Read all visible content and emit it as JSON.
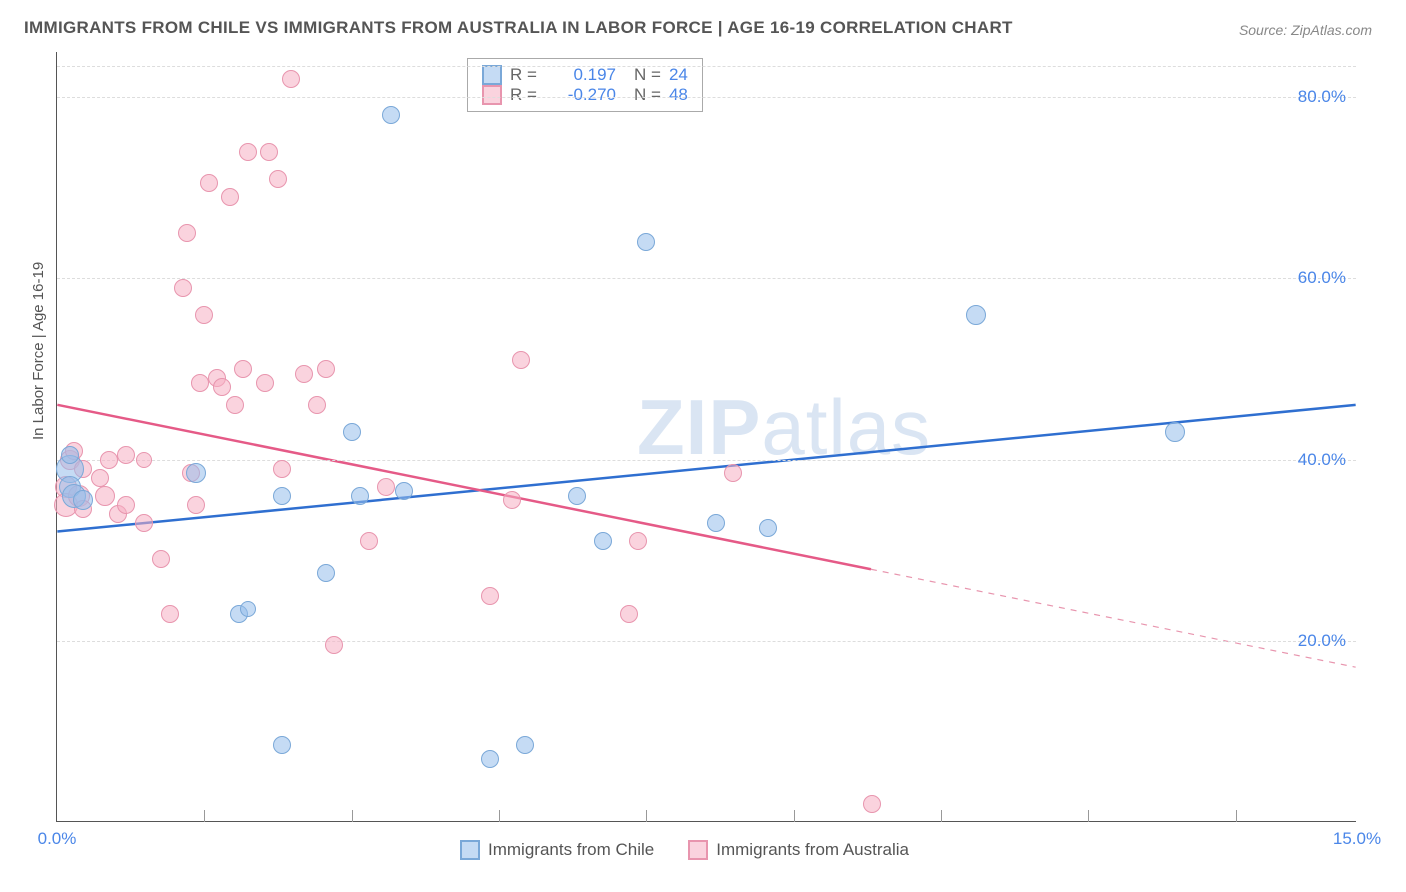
{
  "title": "IMMIGRANTS FROM CHILE VS IMMIGRANTS FROM AUSTRALIA IN LABOR FORCE | AGE 16-19 CORRELATION CHART",
  "source": "Source: ZipAtlas.com",
  "ylabel": "In Labor Force | Age 16-19",
  "watermark_bold": "ZIP",
  "watermark_rest": "atlas",
  "chart": {
    "type": "scatter",
    "xlim": [
      0,
      15
    ],
    "ylim": [
      0,
      85
    ],
    "x_ticks_minor": [
      1.7,
      3.4,
      5.1,
      6.8,
      8.5,
      10.2,
      11.9,
      13.6
    ],
    "x_tick_labels": [
      {
        "v": 0,
        "label": "0.0%"
      },
      {
        "v": 15,
        "label": "15.0%"
      }
    ],
    "y_gridlines": [
      20,
      40,
      60,
      80,
      83.5
    ],
    "y_tick_labels": [
      {
        "v": 20,
        "label": "20.0%"
      },
      {
        "v": 40,
        "label": "40.0%"
      },
      {
        "v": 60,
        "label": "60.0%"
      },
      {
        "v": 80,
        "label": "80.0%"
      }
    ],
    "background_color": "#ffffff",
    "grid_color": "#dddddd",
    "axis_color": "#555555",
    "series": {
      "chile": {
        "label": "Immigrants from Chile",
        "fill": "rgba(150,190,235,0.55)",
        "stroke": "#7aa8d8",
        "line_color": "#2f6fd0",
        "marker_size": 18,
        "R": "0.197",
        "N": "24",
        "trend": {
          "x1": 0,
          "y1": 32,
          "x2": 15,
          "y2": 46,
          "solid_until_x": 15
        },
        "points": [
          {
            "x": 0.15,
            "y": 39,
            "r": 14
          },
          {
            "x": 0.15,
            "y": 37,
            "r": 11
          },
          {
            "x": 0.2,
            "y": 36,
            "r": 12
          },
          {
            "x": 0.3,
            "y": 35.5,
            "r": 10
          },
          {
            "x": 0.15,
            "y": 40.5,
            "r": 9
          },
          {
            "x": 1.6,
            "y": 38.5,
            "r": 10
          },
          {
            "x": 2.1,
            "y": 23,
            "r": 9
          },
          {
            "x": 2.2,
            "y": 23.5,
            "r": 8
          },
          {
            "x": 2.6,
            "y": 8.5,
            "r": 9
          },
          {
            "x": 2.6,
            "y": 36,
            "r": 9
          },
          {
            "x": 3.1,
            "y": 27.5,
            "r": 9
          },
          {
            "x": 3.4,
            "y": 43,
            "r": 9
          },
          {
            "x": 3.5,
            "y": 36,
            "r": 9
          },
          {
            "x": 3.85,
            "y": 78,
            "r": 9
          },
          {
            "x": 4.0,
            "y": 36.5,
            "r": 9
          },
          {
            "x": 5.0,
            "y": 7,
            "r": 9
          },
          {
            "x": 5.4,
            "y": 8.5,
            "r": 9
          },
          {
            "x": 6.0,
            "y": 36,
            "r": 9
          },
          {
            "x": 6.3,
            "y": 31,
            "r": 9
          },
          {
            "x": 6.8,
            "y": 64,
            "r": 9
          },
          {
            "x": 7.6,
            "y": 33,
            "r": 9
          },
          {
            "x": 8.2,
            "y": 32.5,
            "r": 9
          },
          {
            "x": 10.6,
            "y": 56,
            "r": 10
          },
          {
            "x": 12.9,
            "y": 43,
            "r": 10
          }
        ]
      },
      "australia": {
        "label": "Immigrants from Australia",
        "fill": "rgba(245,175,195,0.55)",
        "stroke": "#e895ae",
        "line_color": "#e55a87",
        "marker_size": 18,
        "R": "-0.270",
        "N": "48",
        "trend": {
          "x1": 0,
          "y1": 46,
          "x2": 15,
          "y2": 17,
          "solid_until_x": 9.4
        },
        "points": [
          {
            "x": 0.1,
            "y": 37,
            "r": 11
          },
          {
            "x": 0.1,
            "y": 35,
            "r": 12
          },
          {
            "x": 0.15,
            "y": 40,
            "r": 10
          },
          {
            "x": 0.2,
            "y": 41,
            "r": 9
          },
          {
            "x": 0.25,
            "y": 36,
            "r": 11
          },
          {
            "x": 0.3,
            "y": 34.5,
            "r": 9
          },
          {
            "x": 0.3,
            "y": 39,
            "r": 9
          },
          {
            "x": 0.5,
            "y": 38,
            "r": 9
          },
          {
            "x": 0.55,
            "y": 36,
            "r": 10
          },
          {
            "x": 0.6,
            "y": 40,
            "r": 9
          },
          {
            "x": 0.7,
            "y": 34,
            "r": 9
          },
          {
            "x": 0.8,
            "y": 40.5,
            "r": 9
          },
          {
            "x": 0.8,
            "y": 35,
            "r": 9
          },
          {
            "x": 1.0,
            "y": 33,
            "r": 9
          },
          {
            "x": 1.0,
            "y": 40,
            "r": 8
          },
          {
            "x": 1.2,
            "y": 29,
            "r": 9
          },
          {
            "x": 1.3,
            "y": 23,
            "r": 9
          },
          {
            "x": 1.45,
            "y": 59,
            "r": 9
          },
          {
            "x": 1.5,
            "y": 65,
            "r": 9
          },
          {
            "x": 1.55,
            "y": 38.5,
            "r": 9
          },
          {
            "x": 1.6,
            "y": 35,
            "r": 9
          },
          {
            "x": 1.65,
            "y": 48.5,
            "r": 9
          },
          {
            "x": 1.7,
            "y": 56,
            "r": 9
          },
          {
            "x": 1.75,
            "y": 70.5,
            "r": 9
          },
          {
            "x": 1.85,
            "y": 49,
            "r": 9
          },
          {
            "x": 1.9,
            "y": 48,
            "r": 9
          },
          {
            "x": 2.0,
            "y": 69,
            "r": 9
          },
          {
            "x": 2.05,
            "y": 46,
            "r": 9
          },
          {
            "x": 2.15,
            "y": 50,
            "r": 9
          },
          {
            "x": 2.2,
            "y": 74,
            "r": 9
          },
          {
            "x": 2.45,
            "y": 74,
            "r": 9
          },
          {
            "x": 2.4,
            "y": 48.5,
            "r": 9
          },
          {
            "x": 2.55,
            "y": 71,
            "r": 9
          },
          {
            "x": 2.6,
            "y": 39,
            "r": 9
          },
          {
            "x": 2.7,
            "y": 82,
            "r": 9
          },
          {
            "x": 2.85,
            "y": 49.5,
            "r": 9
          },
          {
            "x": 3.0,
            "y": 46,
            "r": 9
          },
          {
            "x": 3.1,
            "y": 50,
            "r": 9
          },
          {
            "x": 3.2,
            "y": 19.5,
            "r": 9
          },
          {
            "x": 3.6,
            "y": 31,
            "r": 9
          },
          {
            "x": 3.8,
            "y": 37,
            "r": 9
          },
          {
            "x": 5.0,
            "y": 25,
            "r": 9
          },
          {
            "x": 5.25,
            "y": 35.5,
            "r": 9
          },
          {
            "x": 5.35,
            "y": 51,
            "r": 9
          },
          {
            "x": 6.6,
            "y": 23,
            "r": 9
          },
          {
            "x": 6.7,
            "y": 31,
            "r": 9
          },
          {
            "x": 7.8,
            "y": 38.5,
            "r": 9
          },
          {
            "x": 9.4,
            "y": 2,
            "r": 9
          }
        ]
      }
    }
  },
  "legend_top": {
    "rows": [
      {
        "swatch_fill": "rgba(150,190,235,0.55)",
        "swatch_stroke": "#7aa8d8",
        "R": "0.197",
        "N": "24"
      },
      {
        "swatch_fill": "rgba(245,175,195,0.55)",
        "swatch_stroke": "#e895ae",
        "R": "-0.270",
        "N": "48"
      }
    ]
  },
  "legend_bottom": [
    {
      "swatch_fill": "rgba(150,190,235,0.55)",
      "swatch_stroke": "#7aa8d8",
      "label": "Immigrants from Chile"
    },
    {
      "swatch_fill": "rgba(245,175,195,0.55)",
      "swatch_stroke": "#e895ae",
      "label": "Immigrants from Australia"
    }
  ]
}
